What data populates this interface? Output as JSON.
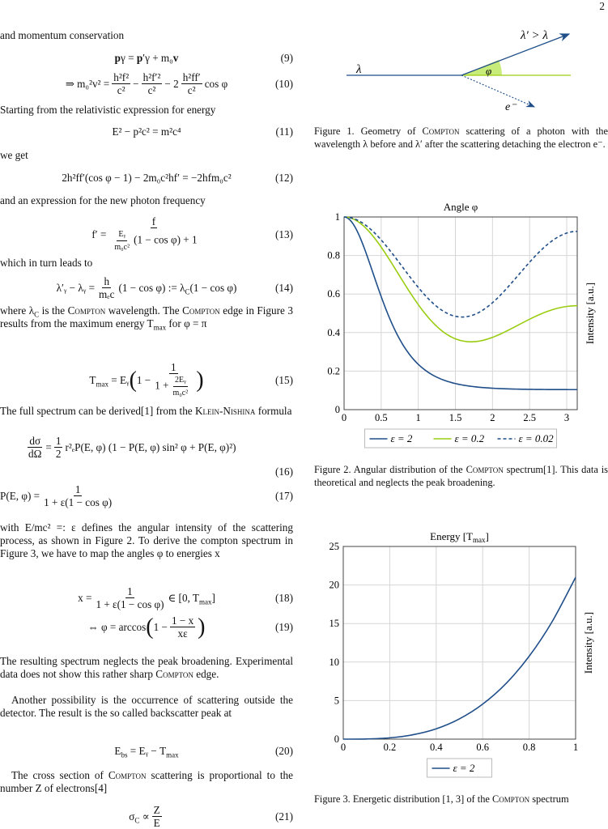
{
  "page_number": "2",
  "left": {
    "p1": "and momentum conservation",
    "eq9": {
      "a": "p",
      "b": "γ",
      "c": " = ",
      "d": "p",
      "e": "′",
      "f": "γ",
      "g": " + m₀",
      "h": "v",
      "no": "(9)"
    },
    "eq10": {
      "lhs": "⇒ m₀²v² =",
      "f1n": "h²f²",
      "f1d": "c²",
      "m1": "−",
      "f2n": "h²f′²",
      "f2d": "c²",
      "m2": "− 2",
      "f3n": "h²ff′",
      "f3d": "c²",
      "tail": "cos φ",
      "no": "(10)"
    },
    "p2": "Starting from the relativistic expression for energy",
    "eq11": {
      "body": "E² − p²c² = m²c⁴",
      "no": "(11)"
    },
    "p3": "we get",
    "eq12": {
      "body": "2h²ff′(cos φ − 1) − 2m₀c²hf′ = −2hfm₀c²",
      "no": "(12)"
    },
    "p4": "and an expression for the new photon frequency",
    "eq13": {
      "lhs": "f′ =",
      "num": "f",
      "dn": "Eᵧ",
      "dd": "m₀c²",
      "dt": "(1 − cos φ) + 1",
      "no": "(13)"
    },
    "p5": "which in turn leads to",
    "eq14": {
      "lhs": "λ′ᵧ − λᵧ =",
      "fn": "h",
      "fd": "mₑc",
      "rhs1": "(1 − cos φ) := λ",
      "sub": "C",
      "rhs2": "(1 − cos φ)",
      "no": "(14)"
    },
    "p6": {
      "t1": "where λ",
      "sub1": "C",
      "t2": " is the ",
      "sc1": "Compton",
      "t3": " wavelength. The ",
      "sc2": "Compton",
      "t4": " edge in Figure 3 results from the maximum energy T",
      "sub2": "max",
      "t5": " for φ = π"
    },
    "eq15": {
      "lhs": "T",
      "lsub": "max",
      "eq": " = Eᵧ",
      "one": "1 −",
      "fn": "1",
      "d1": "1 +",
      "dn": "2Eᵧ",
      "dd": "m₀c²",
      "no": "(15)"
    },
    "p7": {
      "t1": "The full spectrum can be derived[1] from the ",
      "sc1": "Klein-Nishina",
      "t2": " formula"
    },
    "eq16": {
      "fn": "dσ",
      "fd": "dΩ",
      "eq": "=",
      "hn": "1",
      "hd": "2",
      "body": "r²ₑP(E, φ) (1 − P(E, φ) sin² φ + P(E, φ)²)",
      "no": "(16)"
    },
    "eq17": {
      "lhs": "P(E, φ) =",
      "fn": "1",
      "fd": "1 + ε(1 − cos φ)",
      "no": "(17)"
    },
    "p8": "with E/mc² =: ε defines the angular intensity of the scattering process, as shown in Figure 2. To derive the compton spectrum in Figure 3, we have to map the angles φ to energies x",
    "eq18": {
      "lhs": "x =",
      "fn": "1",
      "fd": "1 + ε(1 − cos φ)",
      "rhs": "∈ [0, T",
      "sub": "max",
      "close": "]",
      "no": "(18)"
    },
    "eq19": {
      "lhs": "⇔ φ = arccos",
      "one": "1 −",
      "fn": "1 − x",
      "fd": "xε",
      "no": "(19)"
    },
    "p9": {
      "t1": "The resulting spectrum neglects the peak broadening. Experimental data does not show this rather sharp ",
      "sc1": "Compton",
      "t2": " edge."
    },
    "p10": "Another possibility is the occurrence of scattering outside the detector. The result is the so called backscatter peak at",
    "eq20": {
      "a": "E",
      "asub": "bs",
      "b": " = Eᵧ − T",
      "bsub": "max",
      "no": "(20)"
    },
    "p11": {
      "t1": "The cross section of ",
      "sc1": "Compton",
      "t2": " scattering is proportional to the number Z of electrons[4]"
    },
    "eq21": {
      "a": "σ",
      "asub": "C",
      "b": " ∝",
      "fn": "Z",
      "fd": "E",
      "no": "(21)"
    }
  },
  "figure1": {
    "labels": {
      "lambda": "λ",
      "lambda_prime": "λ′ > λ",
      "phi": "φ",
      "electron": "e⁻"
    },
    "caption": {
      "t1": "Figure 1. Geometry of ",
      "sc1": "Compton",
      "t2": " scattering of a photon with the wavelength λ before and λ′ after the scattering detaching the electron e⁻."
    },
    "colors": {
      "photon": "#1f4e89",
      "angle": "#9acd12"
    }
  },
  "figure2": {
    "caption": {
      "t1": "Figure 2. Angular distribution of the ",
      "sc1": "Compton",
      "t2": " spectrum[1]. This data is theoretical and neglects the peak broadening."
    }
  },
  "figure3": {
    "caption": {
      "t1": "Figure 3. Energetic distribution [1, 3] of the ",
      "sc1": "Compton",
      "t2": " spectrum"
    }
  },
  "chart_data": [
    {
      "type": "line",
      "title": "Angle φ",
      "xlabel": "",
      "ylabel": "Intensity [a.u.]",
      "xlim": [
        0,
        3.1416
      ],
      "ylim": [
        0,
        1
      ],
      "xticks": [
        "0",
        "0.5",
        "1",
        "1.5",
        "2",
        "2.5",
        "3"
      ],
      "yticks": [
        "0",
        "0.2",
        "0.4",
        "0.6",
        "0.8",
        "1"
      ],
      "grid": true,
      "legend": "bottom",
      "x": [
        0,
        0.5,
        1,
        1.5,
        2,
        2.5,
        3,
        3.1416
      ],
      "series": [
        {
          "name": "ε = 2",
          "epsilon": 2,
          "color": "#1f4e89",
          "dash": false,
          "values": [
            1,
            0.587,
            0.235,
            0.135,
            0.111,
            0.105,
            0.104,
            0.104
          ]
        },
        {
          "name": "ε = 0.2",
          "epsilon": 0.2,
          "color": "#9acd12",
          "dash": false,
          "values": [
            1,
            0.844,
            0.545,
            0.368,
            0.375,
            0.47,
            0.536,
            0.539
          ]
        },
        {
          "name": "ε = 0.02",
          "epsilon": 0.02,
          "color": "#1f4e89",
          "dash": true,
          "values": [
            1,
            0.881,
            0.634,
            0.485,
            0.555,
            0.765,
            0.916,
            0.925
          ]
        }
      ]
    },
    {
      "type": "line",
      "title": "Energy [T",
      "title_sub": "max",
      "title_end": "]",
      "xlabel": "",
      "ylabel": "Intensity [a.u.]",
      "xlim": [
        0,
        1
      ],
      "ylim": [
        0,
        25
      ],
      "xticks": [
        "0",
        "0.2",
        "0.4",
        "0.6",
        "0.8",
        "1"
      ],
      "yticks": [
        "0",
        "5",
        "10",
        "15",
        "20",
        "25"
      ],
      "grid": true,
      "legend": "bottom",
      "x": [
        0,
        0.1,
        0.2,
        0.3,
        0.4,
        0.5,
        0.6,
        0.7,
        0.8,
        0.9,
        1
      ],
      "series": [
        {
          "name": "ε = 2",
          "color": "#1f4e89",
          "dash": false,
          "values": [
            0,
            0.02,
            0.17,
            0.57,
            1.34,
            2.63,
            4.54,
            7.2,
            10.75,
            15.3,
            21.0
          ]
        }
      ]
    }
  ]
}
